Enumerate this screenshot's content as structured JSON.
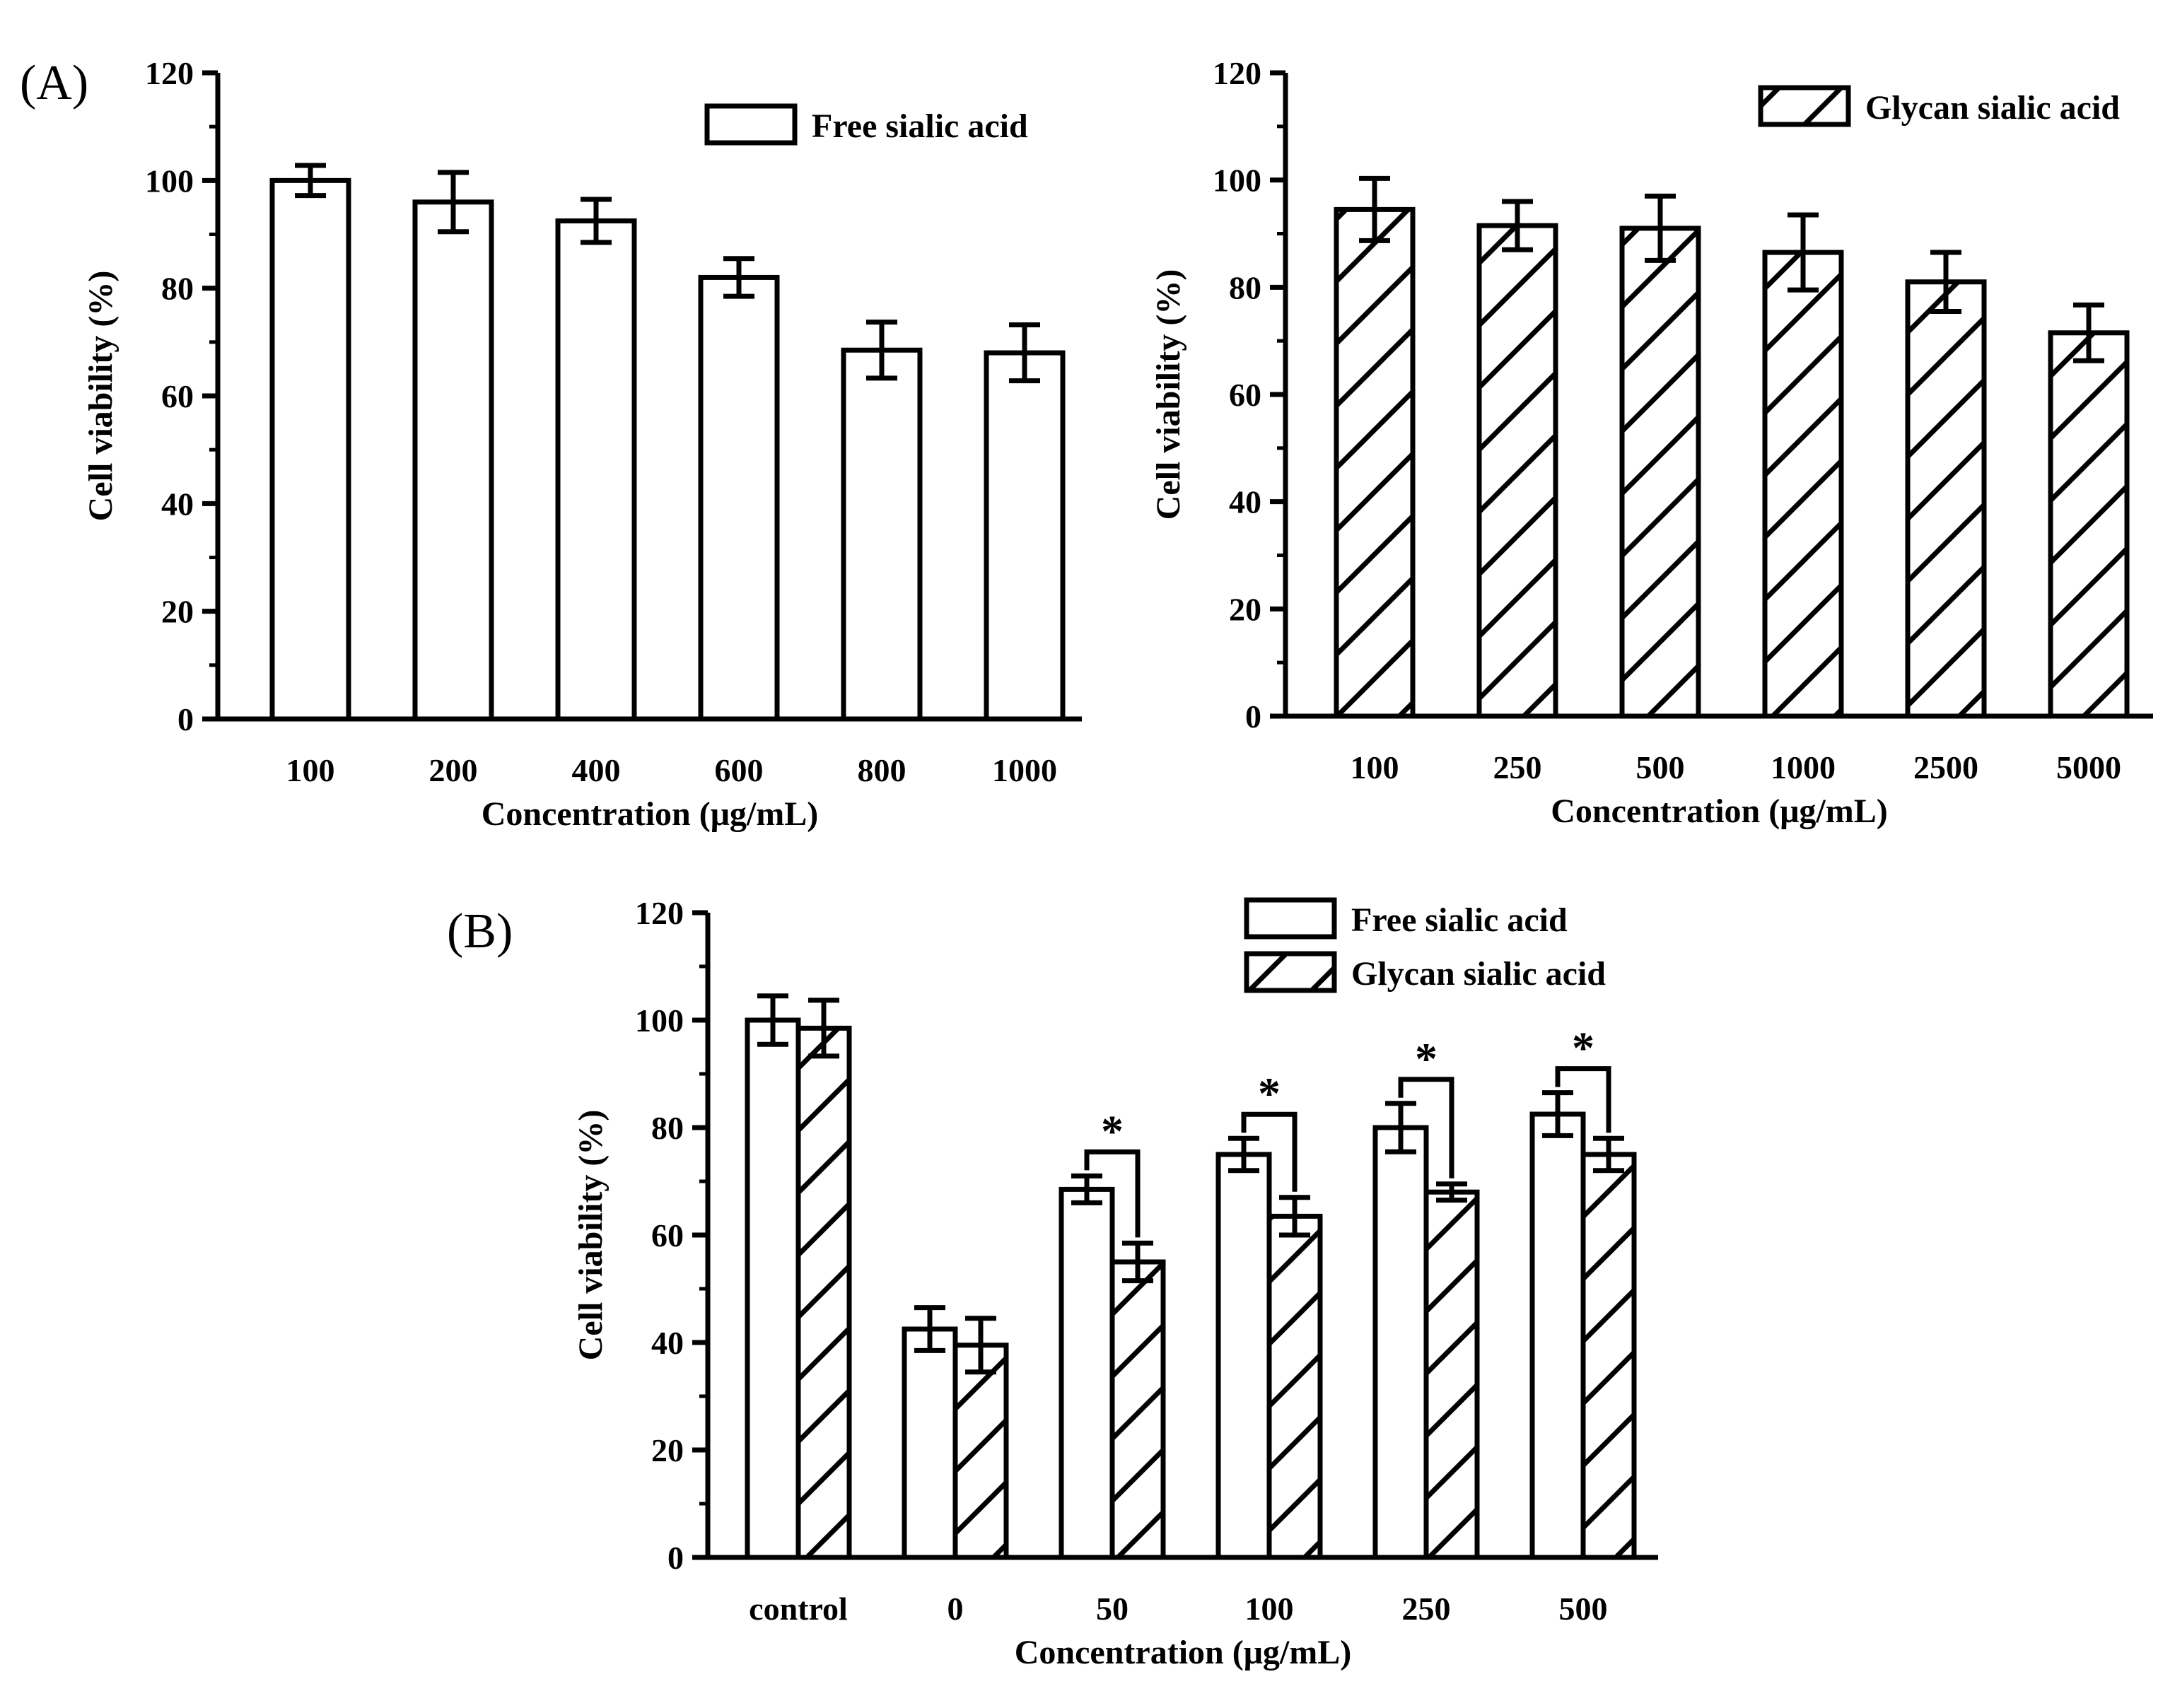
{
  "figure": {
    "label_a": "(A)",
    "label_b": "(B)"
  },
  "chart_data": [
    {
      "type": "bar",
      "panel": "A-left",
      "title": "",
      "xlabel": "Concentration (μg/mL)",
      "ylabel": "Cell viability (%)",
      "ylim": [
        0,
        120
      ],
      "yticks": [
        0,
        20,
        40,
        60,
        80,
        100,
        120
      ],
      "categories": [
        "100",
        "200",
        "400",
        "600",
        "800",
        "1000"
      ],
      "legend_position": "top-right",
      "series": [
        {
          "name": "Free sialic acid",
          "pattern": "open",
          "values": [
            100,
            96,
            92.5,
            82,
            68.5,
            68
          ],
          "errors": [
            2.8,
            5.5,
            4,
            3.5,
            5.2,
            5.2
          ]
        }
      ]
    },
    {
      "type": "bar",
      "panel": "A-right",
      "title": "",
      "xlabel": "Concentration (μg/mL)",
      "ylabel": "Cell viability (%)",
      "ylim": [
        0,
        120
      ],
      "yticks": [
        0,
        20,
        40,
        60,
        80,
        100,
        120
      ],
      "categories": [
        "100",
        "250",
        "500",
        "1000",
        "2500",
        "5000"
      ],
      "legend_position": "top-right",
      "series": [
        {
          "name": "Glycan sialic acid",
          "pattern": "hatched",
          "values": [
            94.5,
            91.5,
            91,
            86.5,
            81,
            71.5
          ],
          "errors": [
            5.8,
            4.5,
            6,
            7,
            5.5,
            5.2
          ]
        }
      ]
    },
    {
      "type": "bar",
      "panel": "B",
      "title": "",
      "xlabel": "Concentration (μg/mL)",
      "ylabel": "Cell viability (%)",
      "ylim": [
        0,
        120
      ],
      "yticks": [
        0,
        20,
        40,
        60,
        80,
        100,
        120
      ],
      "categories": [
        "control",
        "0",
        "50",
        "100",
        "250",
        "500"
      ],
      "legend_position": "top-right",
      "series": [
        {
          "name": "Free sialic acid",
          "pattern": "open",
          "values": [
            100,
            42.5,
            68.5,
            75,
            80,
            82.5
          ],
          "errors": [
            4.5,
            4,
            2.5,
            3,
            4.5,
            4
          ]
        },
        {
          "name": "Glycan sialic acid",
          "pattern": "hatched",
          "values": [
            98.5,
            39.5,
            55,
            63.5,
            68,
            75
          ],
          "errors": [
            5.2,
            5,
            3.5,
            3.5,
            1.5,
            3
          ]
        }
      ],
      "significance": [
        {
          "category": "50",
          "label": "*"
        },
        {
          "category": "100",
          "label": "*"
        },
        {
          "category": "250",
          "label": "*"
        },
        {
          "category": "500",
          "label": "*"
        }
      ]
    }
  ]
}
